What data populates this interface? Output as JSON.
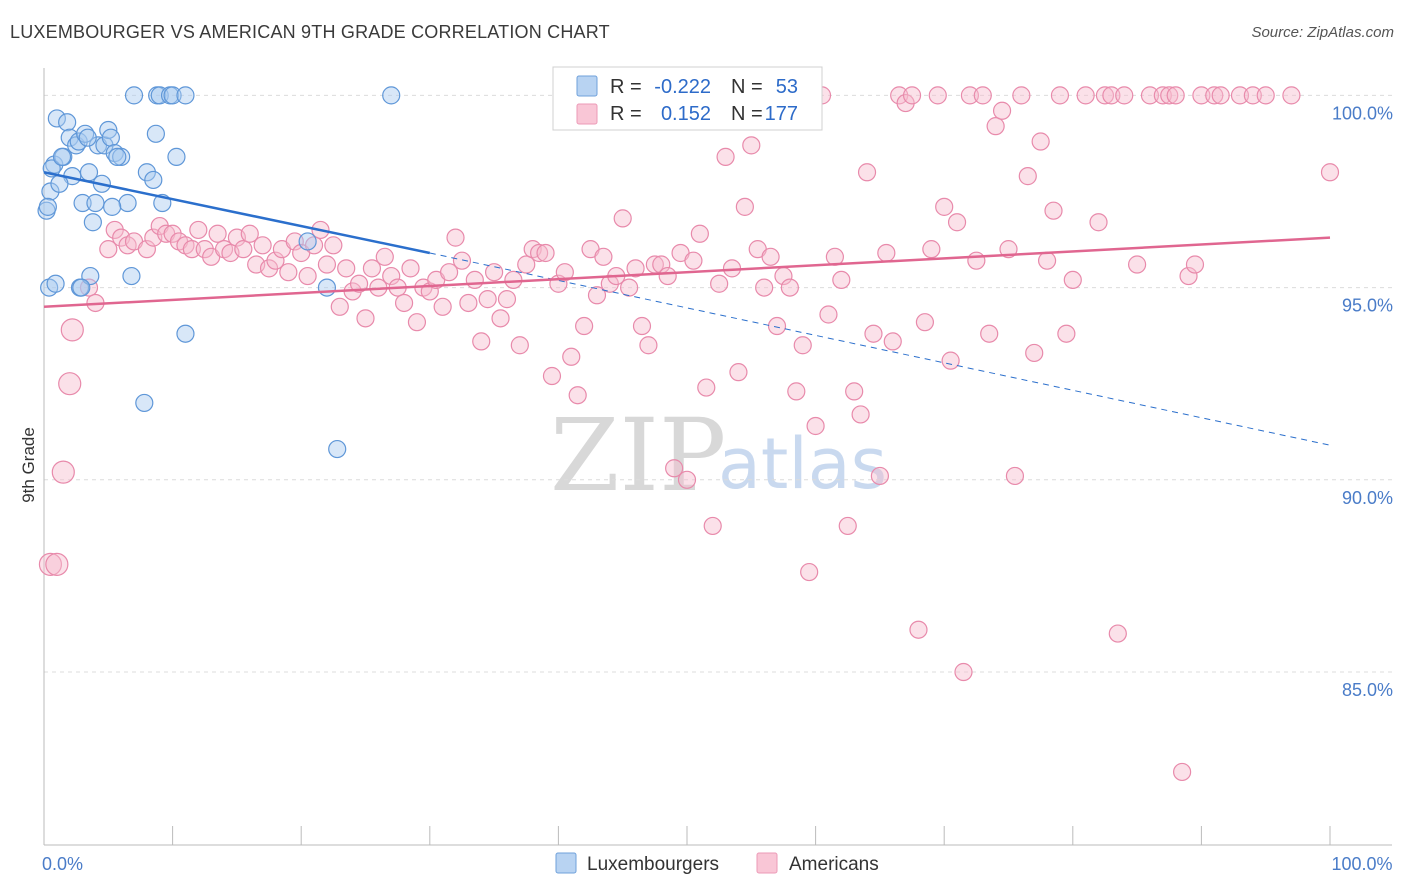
{
  "header": {
    "title": "LUXEMBOURGER VS AMERICAN 9TH GRADE CORRELATION CHART",
    "source": "Source: ZipAtlas.com"
  },
  "watermark": {
    "zip": "ZIP",
    "atlas": "atlas"
  },
  "chart_data": {
    "type": "scatter",
    "title": "LUXEMBOURGER VS AMERICAN 9TH GRADE CORRELATION CHART",
    "xlabel": "",
    "ylabel": "9th Grade",
    "xlim": [
      0,
      100
    ],
    "ylim": [
      80.5,
      100.4
    ],
    "y_ticks": [
      {
        "value": 100,
        "label": "100.0%"
      },
      {
        "value": 95,
        "label": "95.0%"
      },
      {
        "value": 90,
        "label": "90.0%"
      },
      {
        "value": 85,
        "label": "85.0%"
      }
    ],
    "x_ticks": [
      {
        "value": 0,
        "label": "0.0%"
      },
      {
        "value": 100,
        "label": "100.0%"
      }
    ],
    "legend": {
      "r_label": "R =",
      "n_label": "N =",
      "entries": [
        {
          "name": "Luxembourgers",
          "r": "-0.222",
          "n": "53",
          "color": "#7fb0e6"
        },
        {
          "name": "Americans",
          "r": "0.152",
          "n": "177",
          "color": "#f2a6c0"
        }
      ]
    },
    "series": [
      {
        "name": "Luxembourgers",
        "color": "#7fb0e6",
        "trend": {
          "x0": 0,
          "y0": 98.0,
          "x1": 30,
          "y1": 95.9,
          "dash_x1": 100,
          "dash_y1": 90.9,
          "color": "#2b6fcc"
        },
        "points": [
          [
            0.2,
            97.0
          ],
          [
            0.5,
            97.5
          ],
          [
            0.8,
            98.2
          ],
          [
            1.0,
            99.4
          ],
          [
            1.5,
            98.4
          ],
          [
            1.8,
            99.3
          ],
          [
            2.0,
            98.9
          ],
          [
            2.2,
            97.9
          ],
          [
            2.5,
            98.7
          ],
          [
            2.7,
            98.8
          ],
          [
            3.0,
            97.2
          ],
          [
            3.2,
            99.0
          ],
          [
            3.5,
            98.0
          ],
          [
            3.8,
            96.7
          ],
          [
            4.0,
            97.2
          ],
          [
            4.2,
            98.7
          ],
          [
            4.5,
            97.7
          ],
          [
            4.7,
            98.7
          ],
          [
            5.0,
            99.1
          ],
          [
            5.2,
            98.9
          ],
          [
            5.5,
            98.5
          ],
          [
            6.0,
            98.4
          ],
          [
            0.3,
            97.1
          ],
          [
            0.6,
            98.1
          ],
          [
            1.2,
            97.7
          ],
          [
            1.4,
            98.4
          ],
          [
            2.8,
            95.0
          ],
          [
            3.6,
            95.3
          ],
          [
            6.5,
            97.2
          ],
          [
            6.8,
            95.3
          ],
          [
            7.0,
            100.0
          ],
          [
            8.0,
            98.0
          ],
          [
            8.5,
            97.8
          ],
          [
            8.7,
            99.0
          ],
          [
            8.8,
            100.0
          ],
          [
            9.0,
            100.0
          ],
          [
            9.2,
            97.2
          ],
          [
            9.8,
            100.0
          ],
          [
            10.0,
            100.0
          ],
          [
            10.3,
            98.4
          ],
          [
            11.0,
            100.0
          ],
          [
            0.4,
            95.0
          ],
          [
            0.9,
            95.1
          ],
          [
            2.9,
            95.0
          ],
          [
            3.4,
            98.9
          ],
          [
            5.7,
            98.4
          ],
          [
            7.8,
            92.0
          ],
          [
            11.0,
            93.8
          ],
          [
            20.5,
            96.2
          ],
          [
            22.0,
            95.0
          ],
          [
            22.8,
            90.8
          ],
          [
            27.0,
            100.0
          ],
          [
            5.3,
            97.1
          ]
        ]
      },
      {
        "name": "Americans",
        "color": "#f2a6c0",
        "trend": {
          "x0": 0,
          "y0": 94.5,
          "x1": 100,
          "y1": 96.3,
          "color": "#e06690"
        },
        "points": [
          [
            0.5,
            87.8
          ],
          [
            1.0,
            87.8
          ],
          [
            1.5,
            90.2
          ],
          [
            2.0,
            92.5
          ],
          [
            2.2,
            93.9
          ],
          [
            3.5,
            95.0
          ],
          [
            4.0,
            94.6
          ],
          [
            5.0,
            96.0
          ],
          [
            5.5,
            96.5
          ],
          [
            6.0,
            96.3
          ],
          [
            6.5,
            96.1
          ],
          [
            7.0,
            96.2
          ],
          [
            8.0,
            96.0
          ],
          [
            8.5,
            96.3
          ],
          [
            9.0,
            96.6
          ],
          [
            9.5,
            96.4
          ],
          [
            10.0,
            96.4
          ],
          [
            10.5,
            96.2
          ],
          [
            11.0,
            96.1
          ],
          [
            11.5,
            96.0
          ],
          [
            12.0,
            96.5
          ],
          [
            12.5,
            96.0
          ],
          [
            13.0,
            95.8
          ],
          [
            13.5,
            96.4
          ],
          [
            14.0,
            96.0
          ],
          [
            14.5,
            95.9
          ],
          [
            15.0,
            96.3
          ],
          [
            15.5,
            96.0
          ],
          [
            16.0,
            96.4
          ],
          [
            16.5,
            95.6
          ],
          [
            17.0,
            96.1
          ],
          [
            17.5,
            95.5
          ],
          [
            18.0,
            95.7
          ],
          [
            18.5,
            96.0
          ],
          [
            19.0,
            95.4
          ],
          [
            19.5,
            96.2
          ],
          [
            20.0,
            95.9
          ],
          [
            20.5,
            95.3
          ],
          [
            21.0,
            96.1
          ],
          [
            21.5,
            96.5
          ],
          [
            22.0,
            95.6
          ],
          [
            22.5,
            96.1
          ],
          [
            23.0,
            94.5
          ],
          [
            23.5,
            95.5
          ],
          [
            24.0,
            94.9
          ],
          [
            24.5,
            95.1
          ],
          [
            25.0,
            94.2
          ],
          [
            25.5,
            95.5
          ],
          [
            26.0,
            95.0
          ],
          [
            26.5,
            95.8
          ],
          [
            27.0,
            95.3
          ],
          [
            27.5,
            95.0
          ],
          [
            28.0,
            94.6
          ],
          [
            28.5,
            95.5
          ],
          [
            29.0,
            94.1
          ],
          [
            29.5,
            95.0
          ],
          [
            30.0,
            94.9
          ],
          [
            30.5,
            95.2
          ],
          [
            31.0,
            94.5
          ],
          [
            31.5,
            95.4
          ],
          [
            32.0,
            96.3
          ],
          [
            32.5,
            95.7
          ],
          [
            33.0,
            94.6
          ],
          [
            33.5,
            95.2
          ],
          [
            34.0,
            93.6
          ],
          [
            34.5,
            94.7
          ],
          [
            35.0,
            95.4
          ],
          [
            35.5,
            94.2
          ],
          [
            36.0,
            94.7
          ],
          [
            36.5,
            95.2
          ],
          [
            37.0,
            93.5
          ],
          [
            37.5,
            95.6
          ],
          [
            38.0,
            96.0
          ],
          [
            38.5,
            95.9
          ],
          [
            39.0,
            95.9
          ],
          [
            39.5,
            92.7
          ],
          [
            40.0,
            95.1
          ],
          [
            40.5,
            95.4
          ],
          [
            41.0,
            93.2
          ],
          [
            41.5,
            92.2
          ],
          [
            42.0,
            94.0
          ],
          [
            42.5,
            96.0
          ],
          [
            43.0,
            94.8
          ],
          [
            43.5,
            95.8
          ],
          [
            44.0,
            95.1
          ],
          [
            44.5,
            95.3
          ],
          [
            45.0,
            96.8
          ],
          [
            45.5,
            95.0
          ],
          [
            46.0,
            95.5
          ],
          [
            46.5,
            94.0
          ],
          [
            47.0,
            93.5
          ],
          [
            47.5,
            95.6
          ],
          [
            48.0,
            95.6
          ],
          [
            48.5,
            95.3
          ],
          [
            49.0,
            90.3
          ],
          [
            49.5,
            95.9
          ],
          [
            50.0,
            90.0
          ],
          [
            50.5,
            95.7
          ],
          [
            51.0,
            96.4
          ],
          [
            51.5,
            92.4
          ],
          [
            52.0,
            88.8
          ],
          [
            52.5,
            95.1
          ],
          [
            53.0,
            98.4
          ],
          [
            53.5,
            95.5
          ],
          [
            54.0,
            92.8
          ],
          [
            54.5,
            97.1
          ],
          [
            55.0,
            98.7
          ],
          [
            55.5,
            96.0
          ],
          [
            56.0,
            95.0
          ],
          [
            56.5,
            95.8
          ],
          [
            57.0,
            94.0
          ],
          [
            57.5,
            95.3
          ],
          [
            58.0,
            95.0
          ],
          [
            58.5,
            92.3
          ],
          [
            59.0,
            93.5
          ],
          [
            59.5,
            87.6
          ],
          [
            60.0,
            91.4
          ],
          [
            60.5,
            100.0
          ],
          [
            61.0,
            94.3
          ],
          [
            61.5,
            95.8
          ],
          [
            62.0,
            95.2
          ],
          [
            62.5,
            88.8
          ],
          [
            63.0,
            92.3
          ],
          [
            63.5,
            91.7
          ],
          [
            64.0,
            98.0
          ],
          [
            64.5,
            93.8
          ],
          [
            65.0,
            90.1
          ],
          [
            65.5,
            95.9
          ],
          [
            66.0,
            93.6
          ],
          [
            66.5,
            100.0
          ],
          [
            67.0,
            99.8
          ],
          [
            67.5,
            100.0
          ],
          [
            68.0,
            86.1
          ],
          [
            68.5,
            94.1
          ],
          [
            69.0,
            96.0
          ],
          [
            69.5,
            100.0
          ],
          [
            70.0,
            97.1
          ],
          [
            70.5,
            93.1
          ],
          [
            71.0,
            96.7
          ],
          [
            71.5,
            85.0
          ],
          [
            72.0,
            100.0
          ],
          [
            72.5,
            95.7
          ],
          [
            73.0,
            100.0
          ],
          [
            73.5,
            93.8
          ],
          [
            74.0,
            99.2
          ],
          [
            74.5,
            99.6
          ],
          [
            75.0,
            96.0
          ],
          [
            75.5,
            90.1
          ],
          [
            76.0,
            100.0
          ],
          [
            76.5,
            97.9
          ],
          [
            77.0,
            93.3
          ],
          [
            77.5,
            98.8
          ],
          [
            78.0,
            95.7
          ],
          [
            78.5,
            97.0
          ],
          [
            79.0,
            100.0
          ],
          [
            79.5,
            93.8
          ],
          [
            80.0,
            95.2
          ],
          [
            81.0,
            100.0
          ],
          [
            82.0,
            96.7
          ],
          [
            82.5,
            100.0
          ],
          [
            83.0,
            100.0
          ],
          [
            83.5,
            86.0
          ],
          [
            84.0,
            100.0
          ],
          [
            85.0,
            95.6
          ],
          [
            86.0,
            100.0
          ],
          [
            87.0,
            100.0
          ],
          [
            87.5,
            100.0
          ],
          [
            88.0,
            100.0
          ],
          [
            88.5,
            82.4
          ],
          [
            89.0,
            95.3
          ],
          [
            89.5,
            95.6
          ],
          [
            90.0,
            100.0
          ],
          [
            91.0,
            100.0
          ],
          [
            91.5,
            100.0
          ],
          [
            93.0,
            100.0
          ],
          [
            94.0,
            100.0
          ],
          [
            95.0,
            100.0
          ],
          [
            100.0,
            98.0
          ],
          [
            97.0,
            100.0
          ]
        ]
      }
    ]
  }
}
